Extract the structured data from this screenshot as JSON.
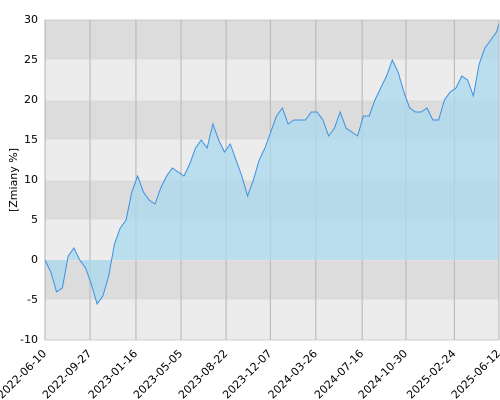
{
  "chart_data": {
    "type": "area",
    "y_label": "[Zmiany %]",
    "x": [
      "2022-06-10",
      "2022-06-24",
      "2022-07-08",
      "2022-07-22",
      "2022-08-05",
      "2022-08-19",
      "2022-09-02",
      "2022-09-16",
      "2022-09-30",
      "2022-10-14",
      "2022-10-28",
      "2022-11-11",
      "2022-11-25",
      "2022-12-09",
      "2022-12-23",
      "2023-01-06",
      "2023-01-20",
      "2023-02-03",
      "2023-02-17",
      "2023-03-03",
      "2023-03-17",
      "2023-03-31",
      "2023-04-14",
      "2023-04-28",
      "2023-05-12",
      "2023-05-26",
      "2023-06-09",
      "2023-06-23",
      "2023-07-07",
      "2023-07-21",
      "2023-08-04",
      "2023-08-18",
      "2023-09-01",
      "2023-09-15",
      "2023-09-29",
      "2023-10-13",
      "2023-10-27",
      "2023-11-10",
      "2023-11-24",
      "2023-12-08",
      "2023-12-22",
      "2024-01-05",
      "2024-01-19",
      "2024-02-02",
      "2024-02-16",
      "2024-03-01",
      "2024-03-15",
      "2024-03-29",
      "2024-04-12",
      "2024-04-26",
      "2024-05-10",
      "2024-05-24",
      "2024-06-07",
      "2024-06-21",
      "2024-07-05",
      "2024-07-19",
      "2024-08-02",
      "2024-08-16",
      "2024-08-30",
      "2024-09-13",
      "2024-09-27",
      "2024-10-11",
      "2024-10-25",
      "2024-11-08",
      "2024-11-22",
      "2024-12-06",
      "2024-12-20",
      "2025-01-03",
      "2025-01-17",
      "2025-01-31",
      "2025-02-14",
      "2025-02-28",
      "2025-03-14",
      "2025-03-28",
      "2025-04-11",
      "2025-04-25",
      "2025-05-09",
      "2025-05-23",
      "2025-06-06",
      "2025-06-12"
    ],
    "values": [
      0,
      -1.5,
      -4,
      -3.5,
      0.5,
      1.5,
      0,
      -1,
      -3,
      -5.5,
      -4.5,
      -2,
      2,
      4,
      5,
      8.5,
      10.5,
      8.5,
      7.5,
      7,
      9,
      10.5,
      11.5,
      11,
      10.5,
      12,
      14,
      15,
      14,
      17,
      15,
      13.5,
      14.5,
      12.5,
      10.5,
      8,
      10,
      12.5,
      14,
      16,
      18,
      19,
      17,
      17.5,
      17.5,
      17.5,
      18.5,
      18.5,
      17.5,
      15.5,
      16.5,
      18.5,
      16.5,
      16,
      15.5,
      18,
      18,
      20,
      21.5,
      23,
      25,
      23.5,
      21,
      19,
      18.5,
      18.5,
      19,
      17.5,
      17.5,
      20,
      21,
      21.5,
      23,
      22.5,
      20.5,
      24.5,
      26.5,
      27.5,
      28.5,
      29.5
    ],
    "color": "#3d8fe0",
    "fill_color": "#a9daee",
    "xlim": [
      "2022-06-10",
      "2025-06-12"
    ],
    "xticks": [
      "2022-06-10",
      "2022-09-27",
      "2023-01-16",
      "2023-05-05",
      "2023-08-22",
      "2023-12-07",
      "2024-03-26",
      "2024-07-16",
      "2024-10-30",
      "2025-02-24",
      "2025-06-12"
    ],
    "ylim": [
      -10,
      30
    ],
    "yticks": [
      -10,
      -5,
      0,
      5,
      10,
      15,
      20,
      25,
      30
    ],
    "grid": true
  }
}
